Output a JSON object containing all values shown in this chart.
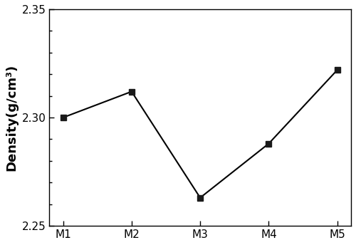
{
  "categories": [
    "M1",
    "M2",
    "M3",
    "M4",
    "M5"
  ],
  "values": [
    2.3,
    2.312,
    2.263,
    2.288,
    2.322
  ],
  "ylabel": "Density(g/cm³)",
  "ylim": [
    2.25,
    2.35
  ],
  "yticks_major": [
    2.25,
    2.3,
    2.35
  ],
  "yticks_minor": [
    2.26,
    2.27,
    2.28,
    2.29,
    2.31,
    2.32,
    2.33,
    2.34
  ],
  "line_color": "#000000",
  "marker": "s",
  "marker_size": 6,
  "marker_color": "#1a1a1a",
  "linewidth": 1.5,
  "background_color": "#ffffff",
  "ylabel_fontsize": 13,
  "tick_fontsize": 11,
  "spine_color": "#000000",
  "figsize": [
    5.0,
    3.44
  ],
  "dpi": 100
}
